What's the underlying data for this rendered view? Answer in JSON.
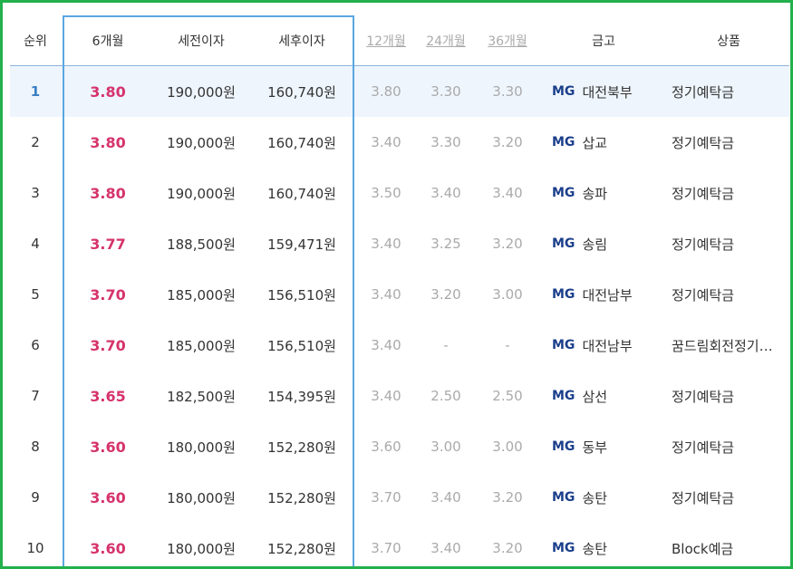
{
  "headers": {
    "rank": "순위",
    "m6": "6개월",
    "pretax": "세전이자",
    "aftertax": "세후이자",
    "m12": "12개월",
    "m24": "24개월",
    "m36": "36개월",
    "bank": "금고",
    "product": "상품"
  },
  "colors": {
    "accent_rate": "#d6336c",
    "highlight_border": "#5aa7e0",
    "frame": "#22b14c",
    "mg": "#1b3f8b"
  },
  "rows": [
    {
      "rank": "1",
      "m6": "3.80",
      "pretax": "190,000원",
      "aftertax": "160,740원",
      "m12": "3.80",
      "m24": "3.30",
      "m36": "3.30",
      "mg": "MG",
      "bank": "대전북부",
      "product": "정기예탁금"
    },
    {
      "rank": "2",
      "m6": "3.80",
      "pretax": "190,000원",
      "aftertax": "160,740원",
      "m12": "3.40",
      "m24": "3.30",
      "m36": "3.20",
      "mg": "MG",
      "bank": "삽교",
      "product": "정기예탁금"
    },
    {
      "rank": "3",
      "m6": "3.80",
      "pretax": "190,000원",
      "aftertax": "160,740원",
      "m12": "3.50",
      "m24": "3.40",
      "m36": "3.40",
      "mg": "MG",
      "bank": "송파",
      "product": "정기예탁금"
    },
    {
      "rank": "4",
      "m6": "3.77",
      "pretax": "188,500원",
      "aftertax": "159,471원",
      "m12": "3.40",
      "m24": "3.25",
      "m36": "3.20",
      "mg": "MG",
      "bank": "송림",
      "product": "정기예탁금"
    },
    {
      "rank": "5",
      "m6": "3.70",
      "pretax": "185,000원",
      "aftertax": "156,510원",
      "m12": "3.40",
      "m24": "3.20",
      "m36": "3.00",
      "mg": "MG",
      "bank": "대전남부",
      "product": "정기예탁금"
    },
    {
      "rank": "6",
      "m6": "3.70",
      "pretax": "185,000원",
      "aftertax": "156,510원",
      "m12": "3.40",
      "m24": "-",
      "m36": "-",
      "mg": "MG",
      "bank": "대전남부",
      "product": "꿈드림회전정기…"
    },
    {
      "rank": "7",
      "m6": "3.65",
      "pretax": "182,500원",
      "aftertax": "154,395원",
      "m12": "3.40",
      "m24": "2.50",
      "m36": "2.50",
      "mg": "MG",
      "bank": "삼선",
      "product": "정기예탁금"
    },
    {
      "rank": "8",
      "m6": "3.60",
      "pretax": "180,000원",
      "aftertax": "152,280원",
      "m12": "3.60",
      "m24": "3.00",
      "m36": "3.00",
      "mg": "MG",
      "bank": "동부",
      "product": "정기예탁금"
    },
    {
      "rank": "9",
      "m6": "3.60",
      "pretax": "180,000원",
      "aftertax": "152,280원",
      "m12": "3.70",
      "m24": "3.40",
      "m36": "3.20",
      "mg": "MG",
      "bank": "송탄",
      "product": "정기예탁금"
    },
    {
      "rank": "10",
      "m6": "3.60",
      "pretax": "180,000원",
      "aftertax": "152,280원",
      "m12": "3.70",
      "m24": "3.40",
      "m36": "3.20",
      "mg": "MG",
      "bank": "송탄",
      "product": "Block예금"
    }
  ]
}
